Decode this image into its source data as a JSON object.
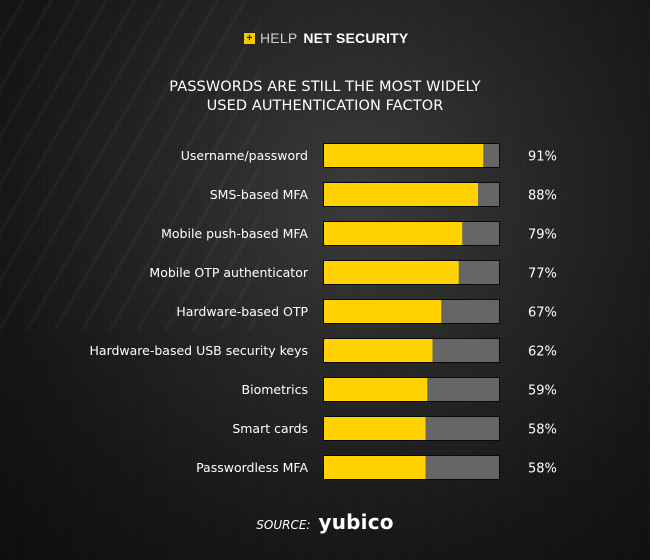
{
  "header": {
    "logo_mark": "+",
    "logo_help": "HELP",
    "logo_net": "NET",
    "logo_security": "SECURITY"
  },
  "title_lines": [
    "PASSWORDS ARE STILL THE MOST WIDELY",
    "USED AUTHENTICATION FACTOR"
  ],
  "footer": {
    "source_label": "SOURCE:",
    "source_brand": "yubico"
  },
  "colors": {
    "bar_fill": "#ffd200",
    "bar_track": "#666666",
    "background": "#1a1a1a",
    "text": "#ffffff"
  },
  "chart_data": {
    "type": "bar",
    "orientation": "horizontal",
    "title": "PASSWORDS ARE STILL THE MOST WIDELY USED AUTHENTICATION FACTOR",
    "xlabel": "",
    "ylabel": "",
    "xlim": [
      0,
      100
    ],
    "grid": false,
    "legend": "none",
    "value_suffix": "%",
    "categories": [
      "Username/password",
      "SMS-based MFA",
      "Mobile push-based MFA",
      "Mobile OTP authenticator",
      "Hardware-based OTP",
      "Hardware-based USB security keys",
      "Biometrics",
      "Smart cards",
      "Passwordless MFA"
    ],
    "values": [
      91,
      88,
      79,
      77,
      67,
      62,
      59,
      58,
      58
    ],
    "value_labels": [
      "91%",
      "88%",
      "79%",
      "77%",
      "67%",
      "62%",
      "59%",
      "58%",
      "58%"
    ]
  }
}
